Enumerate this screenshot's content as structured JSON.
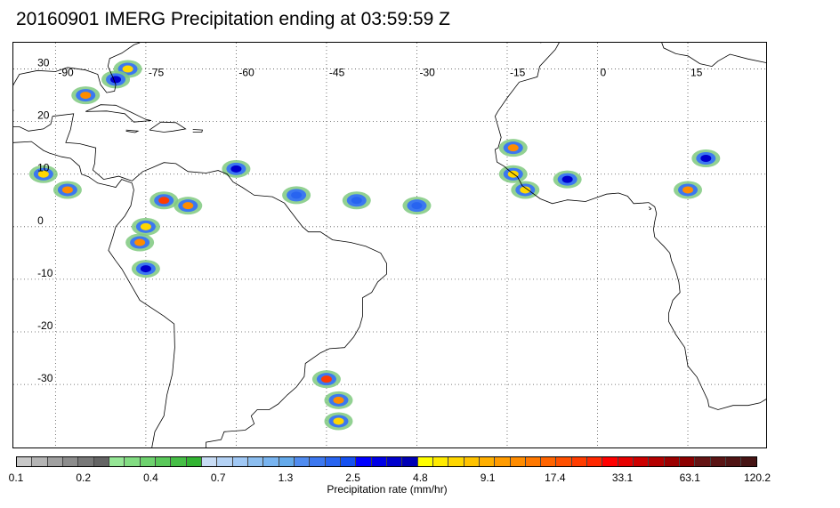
{
  "title": "20160901 IMERG Precipitation ending at 03:59:59 Z",
  "map": {
    "projection": "cylindrical",
    "lon_range": [
      -97,
      28
    ],
    "lat_range": [
      -42,
      35
    ],
    "lon_labels": [
      "-90",
      "-75",
      "-60",
      "-45",
      "-30",
      "-15",
      "0",
      "15"
    ],
    "lon_values": [
      -90,
      -75,
      -60,
      -45,
      -30,
      -15,
      0,
      15
    ],
    "lat_labels": [
      "30",
      "20",
      "10",
      "0",
      "-10",
      "-20",
      "-30"
    ],
    "lat_values": [
      30,
      20,
      10,
      0,
      -10,
      -20,
      -30
    ],
    "gridlines": "dotted",
    "coastline_color": "#000000"
  },
  "colorbar": {
    "colors": [
      "#c8c8c8",
      "#b4b4b4",
      "#a0a0a0",
      "#8c8c8c",
      "#787878",
      "#646464",
      "#96e696",
      "#82dc82",
      "#6ed26e",
      "#5ac85a",
      "#46be46",
      "#32b432",
      "#c8dcf5",
      "#b4d2f5",
      "#a0c8f5",
      "#8cbef0",
      "#78b4f0",
      "#64aaeb",
      "#508cf0",
      "#3c78f0",
      "#2864f0",
      "#1450f0",
      "#0000ff",
      "#0000e6",
      "#0000cd",
      "#0000b4",
      "#ffff00",
      "#ffeb00",
      "#ffd700",
      "#ffc300",
      "#ffaf00",
      "#ff9b00",
      "#ff8c00",
      "#ff7800",
      "#ff6400",
      "#ff5000",
      "#ff3c00",
      "#ff2800",
      "#ff0000",
      "#e60000",
      "#cd0000",
      "#b40000",
      "#9b0000",
      "#8c0000",
      "#641414",
      "#5a1414",
      "#501414",
      "#461414"
    ],
    "tick_labels": [
      "0.1",
      "0.2",
      "0.4",
      "0.7",
      "1.3",
      "2.5",
      "4.8",
      "9.1",
      "17.4",
      "33.1",
      "63.1",
      "120.2"
    ],
    "units_label": "Precipitation rate (mm/hr)"
  },
  "precip_cells": [
    {
      "lon": -78,
      "lat": 30,
      "rate": 9.1
    },
    {
      "lon": -85,
      "lat": 25,
      "rate": 17.4
    },
    {
      "lon": -80,
      "lat": 28,
      "rate": 4.8
    },
    {
      "lon": -92,
      "lat": 10,
      "rate": 9.1
    },
    {
      "lon": -88,
      "lat": 7,
      "rate": 17.4
    },
    {
      "lon": -72,
      "lat": 5,
      "rate": 33.1
    },
    {
      "lon": -68,
      "lat": 4,
      "rate": 17.4
    },
    {
      "lon": -75,
      "lat": 0,
      "rate": 9.1
    },
    {
      "lon": -76,
      "lat": -3,
      "rate": 17.4
    },
    {
      "lon": -75,
      "lat": -8,
      "rate": 4.8
    },
    {
      "lon": -60,
      "lat": 11,
      "rate": 4.8
    },
    {
      "lon": -14,
      "lat": 15,
      "rate": 17.4
    },
    {
      "lon": -14,
      "lat": 10,
      "rate": 9.1
    },
    {
      "lon": -12,
      "lat": 7,
      "rate": 9.1
    },
    {
      "lon": -5,
      "lat": 9,
      "rate": 4.8
    },
    {
      "lon": 15,
      "lat": 7,
      "rate": 17.4
    },
    {
      "lon": 18,
      "lat": 13,
      "rate": 4.8
    },
    {
      "lon": -50,
      "lat": 6,
      "rate": 2.5
    },
    {
      "lon": -40,
      "lat": 5,
      "rate": 2.5
    },
    {
      "lon": -30,
      "lat": 4,
      "rate": 2.5
    },
    {
      "lon": -45,
      "lat": -29,
      "rate": 33.1
    },
    {
      "lon": -43,
      "lat": -33,
      "rate": 17.4
    },
    {
      "lon": -43,
      "lat": -37,
      "rate": 9.1
    }
  ]
}
